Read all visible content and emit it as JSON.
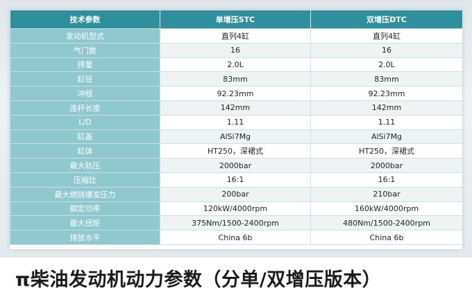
{
  "table": {
    "headers": [
      "技术参数",
      "单增压STC",
      "双增压DTC"
    ],
    "rows": [
      {
        "label": "发动机型式",
        "stc": "直列4缸",
        "dtc": "直列4缸"
      },
      {
        "label": "气门数",
        "stc": "16",
        "dtc": "16"
      },
      {
        "label": "排量",
        "stc": "2.0L",
        "dtc": "2.0L"
      },
      {
        "label": "缸径",
        "stc": "83mm",
        "dtc": "83mm"
      },
      {
        "label": "冲程",
        "stc": "92.23mm",
        "dtc": "92.23mm"
      },
      {
        "label": "连杆长度",
        "stc": "142mm",
        "dtc": "142mm"
      },
      {
        "label": "L/D",
        "stc": "1.11",
        "dtc": "1.11"
      },
      {
        "label": "缸盖",
        "stc": "AlSi7Mg",
        "dtc": "AlSi7Mg"
      },
      {
        "label": "缸体",
        "stc": "HT250，深裙式",
        "dtc": "HT250，深裙式"
      },
      {
        "label": "最大轨压",
        "stc": "2000bar",
        "dtc": "2000bar"
      },
      {
        "label": "压缩比",
        "stc": "16:1",
        "dtc": "16:1"
      },
      {
        "label": "最大燃烧爆发压力",
        "stc": "200bar",
        "dtc": "210bar"
      },
      {
        "label": "额定功率",
        "stc": "120kW/4000rpm",
        "dtc": "160kW/4000rpm"
      },
      {
        "label": "最大扭矩",
        "stc": "375Nm/1500-2400rpm",
        "dtc": "480Nm/1500-2400rpm"
      },
      {
        "label": "排放水平",
        "stc": "China 6b",
        "dtc": "China 6b"
      }
    ]
  },
  "caption": "π柴油发动机动力参数（分单/双增压版本）",
  "colors": {
    "header_bg": "#2f8f9c",
    "label_bg": "#8fc9cf",
    "row_alt_bg": "#eef3f4"
  }
}
